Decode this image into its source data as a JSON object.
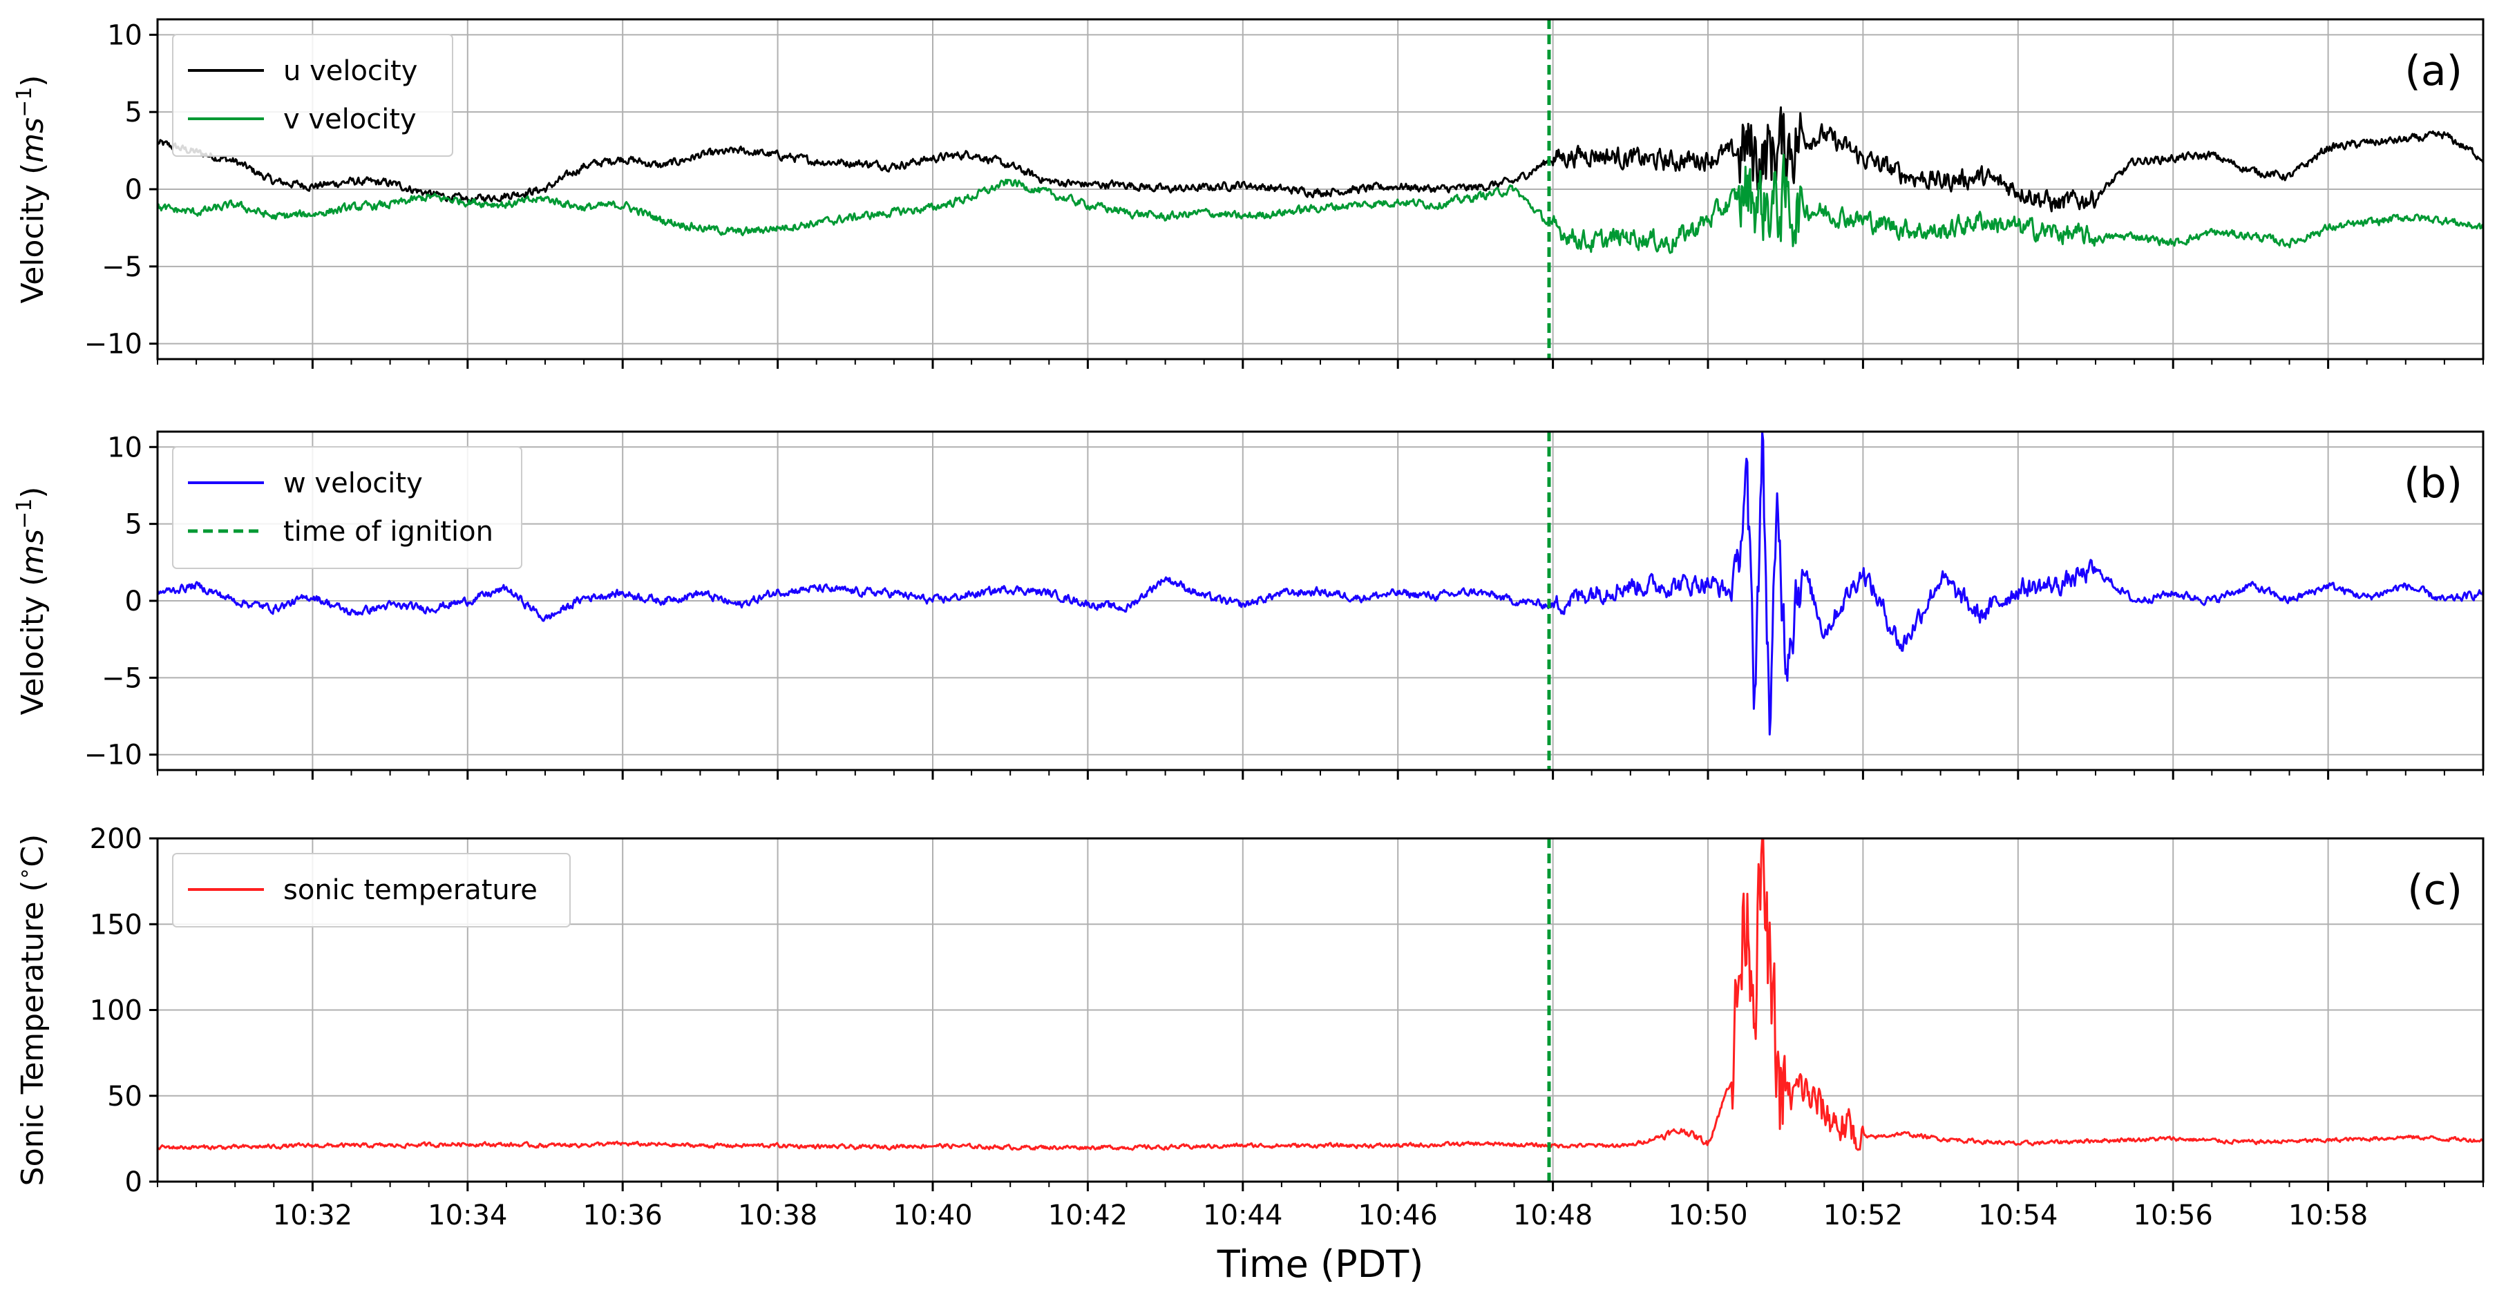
{
  "chart_data": [
    {
      "panel": "(a)",
      "type": "line",
      "ylabel": "Velocity",
      "ylabel_unit_base": "ms",
      "ylabel_unit_exp": "−1",
      "ylim": [
        -11,
        11
      ],
      "yticks": [
        10,
        5,
        0,
        -5,
        -10
      ],
      "xlim_minutes": [
        0,
        30
      ],
      "grid": true,
      "legend_position": "top-left",
      "ignition_minute": 17.95,
      "series": [
        {
          "name": "u velocity",
          "color": "#000000",
          "x": [
            0,
            0.5,
            1,
            1.5,
            2,
            2.5,
            3,
            3.5,
            4,
            4.5,
            5,
            5.5,
            6,
            6.5,
            7,
            7.5,
            8,
            8.5,
            9,
            9.5,
            10,
            10.5,
            11,
            11.5,
            12,
            12.5,
            13,
            13.5,
            14,
            14.5,
            15,
            15.5,
            16,
            16.5,
            17,
            17.5,
            18,
            18.5,
            19,
            19.5,
            20,
            20.5,
            20.7,
            21,
            21.5,
            22,
            22.5,
            23,
            23.5,
            24,
            24.5,
            25,
            25.5,
            26,
            26.5,
            27,
            27.5,
            28,
            28.5,
            29,
            29.5,
            30
          ],
          "y": [
            3.0,
            2.4,
            1.8,
            0.5,
            0.2,
            0.5,
            0.4,
            -0.3,
            -0.7,
            -0.4,
            0.0,
            1.5,
            2.0,
            1.5,
            2.2,
            2.5,
            2.2,
            1.8,
            1.7,
            1.5,
            2.0,
            2.3,
            1.5,
            0.5,
            0.3,
            0.3,
            0.0,
            0.1,
            0.3,
            0.0,
            -0.2,
            0.0,
            0.2,
            0.0,
            0.1,
            0.5,
            2.0,
            2.3,
            2.0,
            1.8,
            2.0,
            2.6,
            2.0,
            3.0,
            3.5,
            2.0,
            1.0,
            0.5,
            0.8,
            0.0,
            -1.0,
            -0.5,
            1.8,
            2.0,
            2.2,
            1.2,
            0.8,
            2.7,
            3.0,
            3.2,
            3.5,
            2.0
          ]
        },
        {
          "name": "v velocity",
          "color": "#009933",
          "x": [
            0,
            0.5,
            1,
            1.5,
            2,
            2.5,
            3,
            3.5,
            4,
            4.5,
            5,
            5.5,
            6,
            6.5,
            7,
            7.5,
            8,
            8.5,
            9,
            9.5,
            10,
            10.5,
            11,
            11.5,
            12,
            12.5,
            13,
            13.5,
            14,
            14.5,
            15,
            15.5,
            16,
            16.5,
            17,
            17.5,
            18,
            18.5,
            19,
            19.5,
            20,
            20.5,
            20.7,
            21,
            21.5,
            22,
            22.5,
            23,
            23.5,
            24,
            24.5,
            25,
            25.5,
            26,
            26.5,
            27,
            27.5,
            28,
            28.5,
            29,
            29.5,
            30
          ],
          "y": [
            -1.2,
            -1.5,
            -1.0,
            -1.8,
            -1.6,
            -1.2,
            -1.0,
            -0.5,
            -0.8,
            -1.0,
            -0.6,
            -1.2,
            -1.0,
            -2.0,
            -2.5,
            -2.8,
            -2.5,
            -2.2,
            -1.8,
            -1.5,
            -1.2,
            -0.5,
            0.5,
            -0.3,
            -1.0,
            -1.5,
            -1.8,
            -1.5,
            -1.8,
            -1.5,
            -1.2,
            -1.0,
            -0.8,
            -1.0,
            -0.5,
            0.0,
            -2.5,
            -3.5,
            -3.0,
            -3.5,
            -2.0,
            0.0,
            -1.0,
            -1.0,
            -1.5,
            -2.0,
            -2.5,
            -2.8,
            -2.0,
            -2.5,
            -2.8,
            -3.2,
            -3.0,
            -3.5,
            -2.8,
            -3.0,
            -3.5,
            -2.5,
            -2.2,
            -1.8,
            -2.0,
            -2.5
          ]
        }
      ]
    },
    {
      "panel": "(b)",
      "type": "line",
      "ylabel": "Velocity",
      "ylabel_unit_base": "ms",
      "ylabel_unit_exp": "−1",
      "ylim": [
        -11,
        11
      ],
      "yticks": [
        10,
        5,
        0,
        -5,
        -10
      ],
      "xlim_minutes": [
        0,
        30
      ],
      "grid": true,
      "legend_position": "top-left",
      "ignition_minute": 17.95,
      "ignition_legend": "time of ignition",
      "series": [
        {
          "name": "w velocity",
          "color": "#1a00ff",
          "x": [
            0,
            0.5,
            1,
            1.5,
            2,
            2.5,
            3,
            3.5,
            4,
            4.5,
            5,
            5.5,
            6,
            6.5,
            7,
            7.5,
            8,
            8.5,
            9,
            9.5,
            10,
            10.5,
            11,
            11.5,
            12,
            12.5,
            13,
            13.5,
            14,
            14.5,
            15,
            15.5,
            16,
            16.5,
            17,
            17.5,
            18,
            18.5,
            19,
            19.5,
            20,
            20.3,
            20.5,
            20.6,
            20.7,
            20.8,
            20.9,
            21,
            21.2,
            21.5,
            22,
            22.5,
            23,
            23.5,
            24,
            24.5,
            25,
            25.5,
            26,
            26.5,
            27,
            27.5,
            28,
            28.5,
            29,
            29.5,
            30
          ],
          "y": [
            0.5,
            1.0,
            0.0,
            -0.5,
            0.3,
            -0.8,
            -0.3,
            -0.5,
            0.0,
            0.8,
            -1.2,
            0.2,
            0.5,
            0.0,
            0.5,
            -0.3,
            0.6,
            0.8,
            0.6,
            0.5,
            0.0,
            0.4,
            0.8,
            0.5,
            -0.2,
            -0.5,
            1.5,
            0.3,
            -0.3,
            0.5,
            0.6,
            0.2,
            0.5,
            0.3,
            0.6,
            0.0,
            -0.3,
            0.6,
            1.0,
            1.0,
            1.2,
            0.5,
            7.0,
            -6.0,
            10.0,
            -8.0,
            6.0,
            -3.0,
            2.5,
            -2.0,
            2.0,
            -3.0,
            1.5,
            -1.0,
            0.8,
            1.0,
            2.0,
            0.0,
            0.5,
            0.0,
            1.0,
            0.0,
            1.0,
            0.2,
            1.0,
            0.0,
            0.5
          ]
        }
      ]
    },
    {
      "panel": "(c)",
      "type": "line",
      "ylabel": "Sonic Temperature",
      "ylabel_unit_base": "C",
      "ylabel_unit_deg": "∘",
      "ylim": [
        0,
        200
      ],
      "yticks": [
        200,
        150,
        100,
        50,
        0
      ],
      "xlim_minutes": [
        0,
        30
      ],
      "grid": true,
      "legend_position": "top-left",
      "ignition_minute": 17.95,
      "series": [
        {
          "name": "sonic temperature",
          "color": "#ff2020",
          "x": [
            0,
            1,
            2,
            3,
            4,
            5,
            6,
            7,
            8,
            9,
            10,
            11,
            12,
            13,
            14,
            15,
            16,
            17,
            18,
            18.5,
            19,
            19.5,
            19.7,
            20,
            20.3,
            20.5,
            20.6,
            20.7,
            20.8,
            20.9,
            21,
            21.2,
            21.5,
            21.8,
            22,
            22.5,
            23,
            24,
            25,
            26,
            27,
            28,
            29,
            30
          ],
          "y": [
            20,
            20,
            21,
            21,
            22,
            21,
            22,
            21,
            21,
            20,
            21,
            20,
            20,
            20,
            21,
            21,
            21,
            22,
            21,
            21,
            21,
            28,
            30,
            22,
            60,
            170,
            120,
            185,
            110,
            60,
            45,
            55,
            40,
            30,
            25,
            28,
            25,
            22,
            24,
            25,
            23,
            24,
            26,
            24
          ]
        }
      ]
    }
  ],
  "x_axis": {
    "label": "Time (PDT)",
    "tick_labels": [
      "10:32",
      "10:34",
      "10:36",
      "10:38",
      "10:40",
      "10:42",
      "10:44",
      "10:46",
      "10:48",
      "10:50",
      "10:52",
      "10:54",
      "10:56",
      "10:58"
    ],
    "tick_minutes": [
      2,
      4,
      6,
      8,
      10,
      12,
      14,
      16,
      18,
      20,
      22,
      24,
      26,
      28
    ]
  }
}
